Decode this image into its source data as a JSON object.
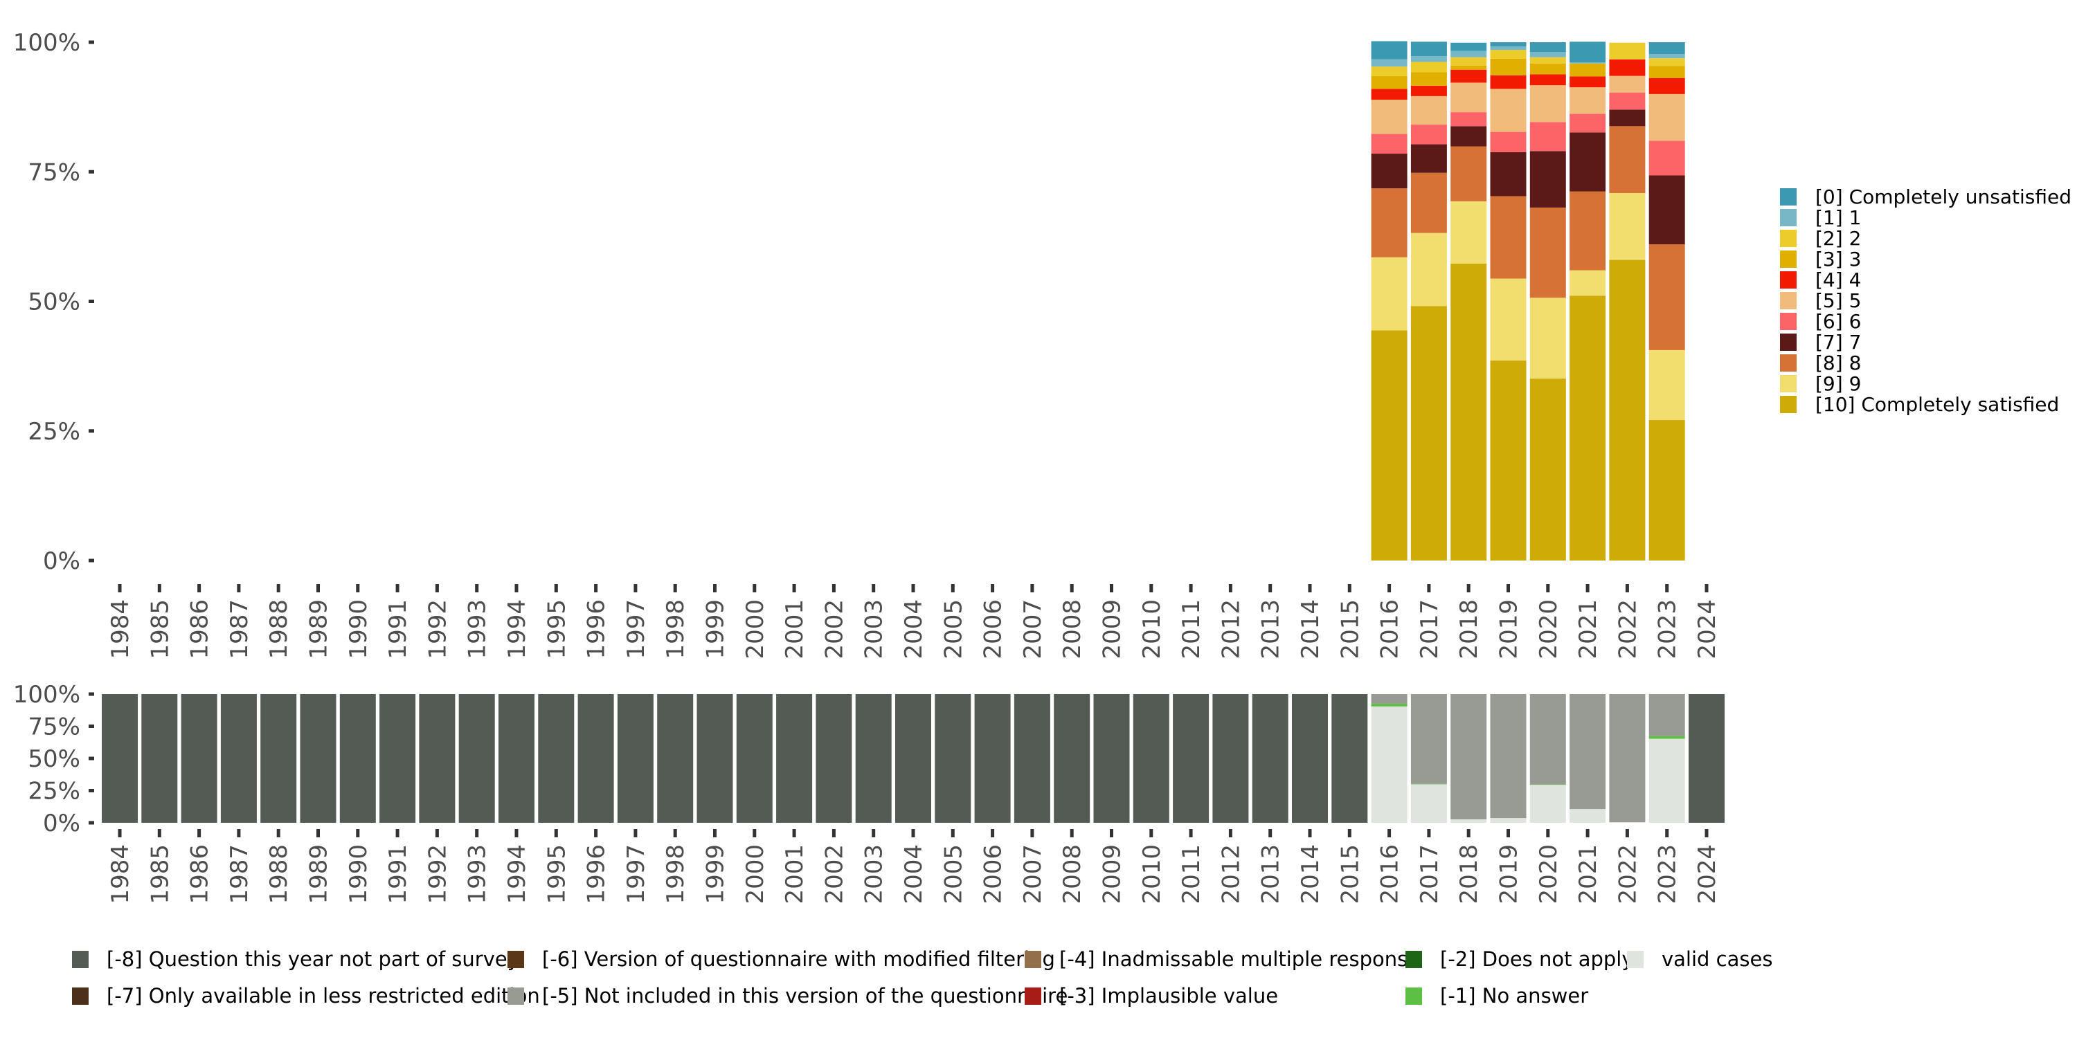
{
  "chart_data": [
    {
      "type": "bar",
      "stacked": true,
      "normalized": true,
      "title": "",
      "xlabel": "",
      "ylabel": "",
      "ylim": [
        0,
        100
      ],
      "yticks": [
        "0%",
        "25%",
        "50%",
        "75%",
        "100%"
      ],
      "grid": false,
      "legend_position": "right",
      "categories": [
        "1984",
        "1985",
        "1986",
        "1987",
        "1988",
        "1989",
        "1990",
        "1991",
        "1992",
        "1993",
        "1994",
        "1995",
        "1996",
        "1997",
        "1998",
        "1999",
        "2000",
        "2001",
        "2002",
        "2003",
        "2004",
        "2005",
        "2006",
        "2007",
        "2008",
        "2009",
        "2010",
        "2011",
        "2012",
        "2013",
        "2014",
        "2015",
        "2016",
        "2017",
        "2018",
        "2019",
        "2020",
        "2021",
        "2022",
        "2023",
        "2024"
      ],
      "series": [
        {
          "name": "[0] Completely unsatisfied",
          "color": "#3B9AB2",
          "values": {
            "2016": 3.5,
            "2017": 2.8,
            "2018": 1.6,
            "2019": 0.8,
            "2020": 1.9,
            "2021": 4.0,
            "2022": 0,
            "2023": 2.3
          }
        },
        {
          "name": "[1] 1",
          "color": "#78B7C5",
          "values": {
            "2016": 1.4,
            "2017": 1.1,
            "2018": 1.2,
            "2019": 0.7,
            "2020": 1.0,
            "2021": 0.2,
            "2022": 0,
            "2023": 0.8
          }
        },
        {
          "name": "[2] 2",
          "color": "#EBCC2A",
          "values": {
            "2016": 1.8,
            "2017": 2.0,
            "2018": 1.6,
            "2019": 1.7,
            "2020": 1.2,
            "2021": 0,
            "2022": 3.2,
            "2023": 1.5
          }
        },
        {
          "name": "[3] 3",
          "color": "#E1AF00",
          "values": {
            "2016": 2.5,
            "2017": 2.6,
            "2018": 0.8,
            "2019": 3.2,
            "2020": 2.1,
            "2021": 2.5,
            "2022": 0,
            "2023": 2.3
          }
        },
        {
          "name": "[4] 4",
          "color": "#F21A00",
          "values": {
            "2016": 2.1,
            "2017": 2.0,
            "2018": 2.5,
            "2019": 2.6,
            "2020": 2.1,
            "2021": 2.1,
            "2022": 3.2,
            "2023": 3.1
          }
        },
        {
          "name": "[5] 5",
          "color": "#F1BB7B",
          "values": {
            "2016": 6.6,
            "2017": 5.5,
            "2018": 5.7,
            "2019": 8.3,
            "2020": 7.1,
            "2021": 5.1,
            "2022": 3.2,
            "2023": 9.0
          }
        },
        {
          "name": "[6] 6",
          "color": "#FD6467",
          "values": {
            "2016": 3.8,
            "2017": 3.8,
            "2018": 2.7,
            "2019": 3.9,
            "2020": 5.6,
            "2021": 3.6,
            "2022": 3.3,
            "2023": 6.7
          }
        },
        {
          "name": "[7] 7",
          "color": "#5B1A18",
          "values": {
            "2016": 6.7,
            "2017": 5.5,
            "2018": 3.9,
            "2019": 8.5,
            "2020": 10.9,
            "2021": 11.4,
            "2022": 3.2,
            "2023": 13.3
          }
        },
        {
          "name": "[8] 8",
          "color": "#D67236",
          "values": {
            "2016": 13.3,
            "2017": 11.6,
            "2018": 10.6,
            "2019": 15.9,
            "2020": 17.4,
            "2021": 15.2,
            "2022": 12.9,
            "2023": 20.4
          }
        },
        {
          "name": "[9] 9",
          "color": "#F2DE6E",
          "values": {
            "2016": 14.1,
            "2017": 14.1,
            "2018": 12.0,
            "2019": 15.8,
            "2020": 15.6,
            "2021": 4.9,
            "2022": 12.9,
            "2023": 13.5
          }
        },
        {
          "name": "[10] Completely satisfied",
          "color": "#CFAB07",
          "values": {
            "2016": 44.4,
            "2017": 49.1,
            "2018": 57.3,
            "2019": 38.6,
            "2020": 35.1,
            "2021": 51.1,
            "2022": 58.0,
            "2023": 27.1
          }
        }
      ]
    },
    {
      "type": "bar",
      "stacked": true,
      "normalized": true,
      "title": "",
      "xlabel": "",
      "ylabel": "",
      "ylim": [
        0,
        100
      ],
      "yticks": [
        "0%",
        "25%",
        "50%",
        "75%",
        "100%"
      ],
      "grid": false,
      "legend_position": "bottom",
      "categories": [
        "1984",
        "1985",
        "1986",
        "1987",
        "1988",
        "1989",
        "1990",
        "1991",
        "1992",
        "1993",
        "1994",
        "1995",
        "1996",
        "1997",
        "1998",
        "1999",
        "2000",
        "2001",
        "2002",
        "2003",
        "2004",
        "2005",
        "2006",
        "2007",
        "2008",
        "2009",
        "2010",
        "2011",
        "2012",
        "2013",
        "2014",
        "2015",
        "2016",
        "2017",
        "2018",
        "2019",
        "2020",
        "2021",
        "2022",
        "2023",
        "2024"
      ],
      "series": [
        {
          "name": "[-8] Question this year not part of survey",
          "color": "#545B55",
          "values": {
            "1984": 100,
            "1985": 100,
            "1986": 100,
            "1987": 100,
            "1988": 100,
            "1989": 100,
            "1990": 100,
            "1991": 100,
            "1992": 100,
            "1993": 100,
            "1994": 100,
            "1995": 100,
            "1996": 100,
            "1997": 100,
            "1998": 100,
            "1999": 100,
            "2000": 100,
            "2001": 100,
            "2002": 100,
            "2003": 100,
            "2004": 100,
            "2005": 100,
            "2006": 100,
            "2007": 100,
            "2008": 100,
            "2009": 100,
            "2010": 100,
            "2011": 100,
            "2012": 100,
            "2013": 100,
            "2014": 100,
            "2015": 100,
            "2024": 100
          }
        },
        {
          "name": "[-7] Only available in less restricted edition",
          "color": "#4D301A",
          "values": {}
        },
        {
          "name": "[-6] Version of questionnaire with modified filtering",
          "color": "#5A3817",
          "values": {}
        },
        {
          "name": "[-5] Not included in this version of the questionnaire",
          "color": "#979B93",
          "values": {
            "2016": 7.5,
            "2017": 69.7,
            "2018": 97.3,
            "2019": 96.3,
            "2020": 70.1,
            "2021": 89.3,
            "2022": 99.5,
            "2023": 32.6
          }
        },
        {
          "name": "[-4] Inadmissable multiple response",
          "color": "#93704B",
          "values": {}
        },
        {
          "name": "[-3] Implausible value",
          "color": "#A71C16",
          "values": {}
        },
        {
          "name": "[-2] Does not apply",
          "color": "#1E6615",
          "values": {}
        },
        {
          "name": "[-1] No answer",
          "color": "#5BC044",
          "values": {
            "2016": 2.1,
            "2017": 0.4,
            "2020": 0.4,
            "2023": 2.1
          }
        },
        {
          "name": "valid cases",
          "color": "#E0E4DF",
          "values": {
            "2016": 90.4,
            "2017": 29.9,
            "2018": 2.7,
            "2019": 3.7,
            "2020": 29.5,
            "2021": 10.7,
            "2022": 0.5,
            "2023": 65.3
          }
        }
      ]
    }
  ],
  "top_legend": [
    {
      "label": "[0] Completely unsatisfied",
      "color": "#3B9AB2"
    },
    {
      "label": "[1] 1",
      "color": "#78B7C5"
    },
    {
      "label": "[2] 2",
      "color": "#EBCC2A"
    },
    {
      "label": "[3] 3",
      "color": "#E1AF00"
    },
    {
      "label": "[4] 4",
      "color": "#F21A00"
    },
    {
      "label": "[5] 5",
      "color": "#F1BB7B"
    },
    {
      "label": "[6] 6",
      "color": "#FD6467"
    },
    {
      "label": "[7] 7",
      "color": "#5B1A18"
    },
    {
      "label": "[8] 8",
      "color": "#D67236"
    },
    {
      "label": "[9] 9",
      "color": "#F2DE6E"
    },
    {
      "label": "[10] Completely satisfied",
      "color": "#CFAB07"
    }
  ],
  "bottom_legend": [
    {
      "label": "[-8] Question this year not part of survey",
      "color": "#545B55"
    },
    {
      "label": "[-7] Only available in less restricted edition",
      "color": "#4D301A"
    },
    {
      "label": "[-6] Version of questionnaire with modified filtering",
      "color": "#5A3817"
    },
    {
      "label": "[-5] Not included in this version of the questionnaire",
      "color": "#979B93"
    },
    {
      "label": "[-4] Inadmissable multiple response",
      "color": "#93704B"
    },
    {
      "label": "[-3] Implausible value",
      "color": "#A71C16"
    },
    {
      "label": "[-2] Does not apply",
      "color": "#1E6615"
    },
    {
      "label": "[-1] No answer",
      "color": "#5BC044"
    },
    {
      "label": "valid cases",
      "color": "#E0E4DF"
    }
  ]
}
